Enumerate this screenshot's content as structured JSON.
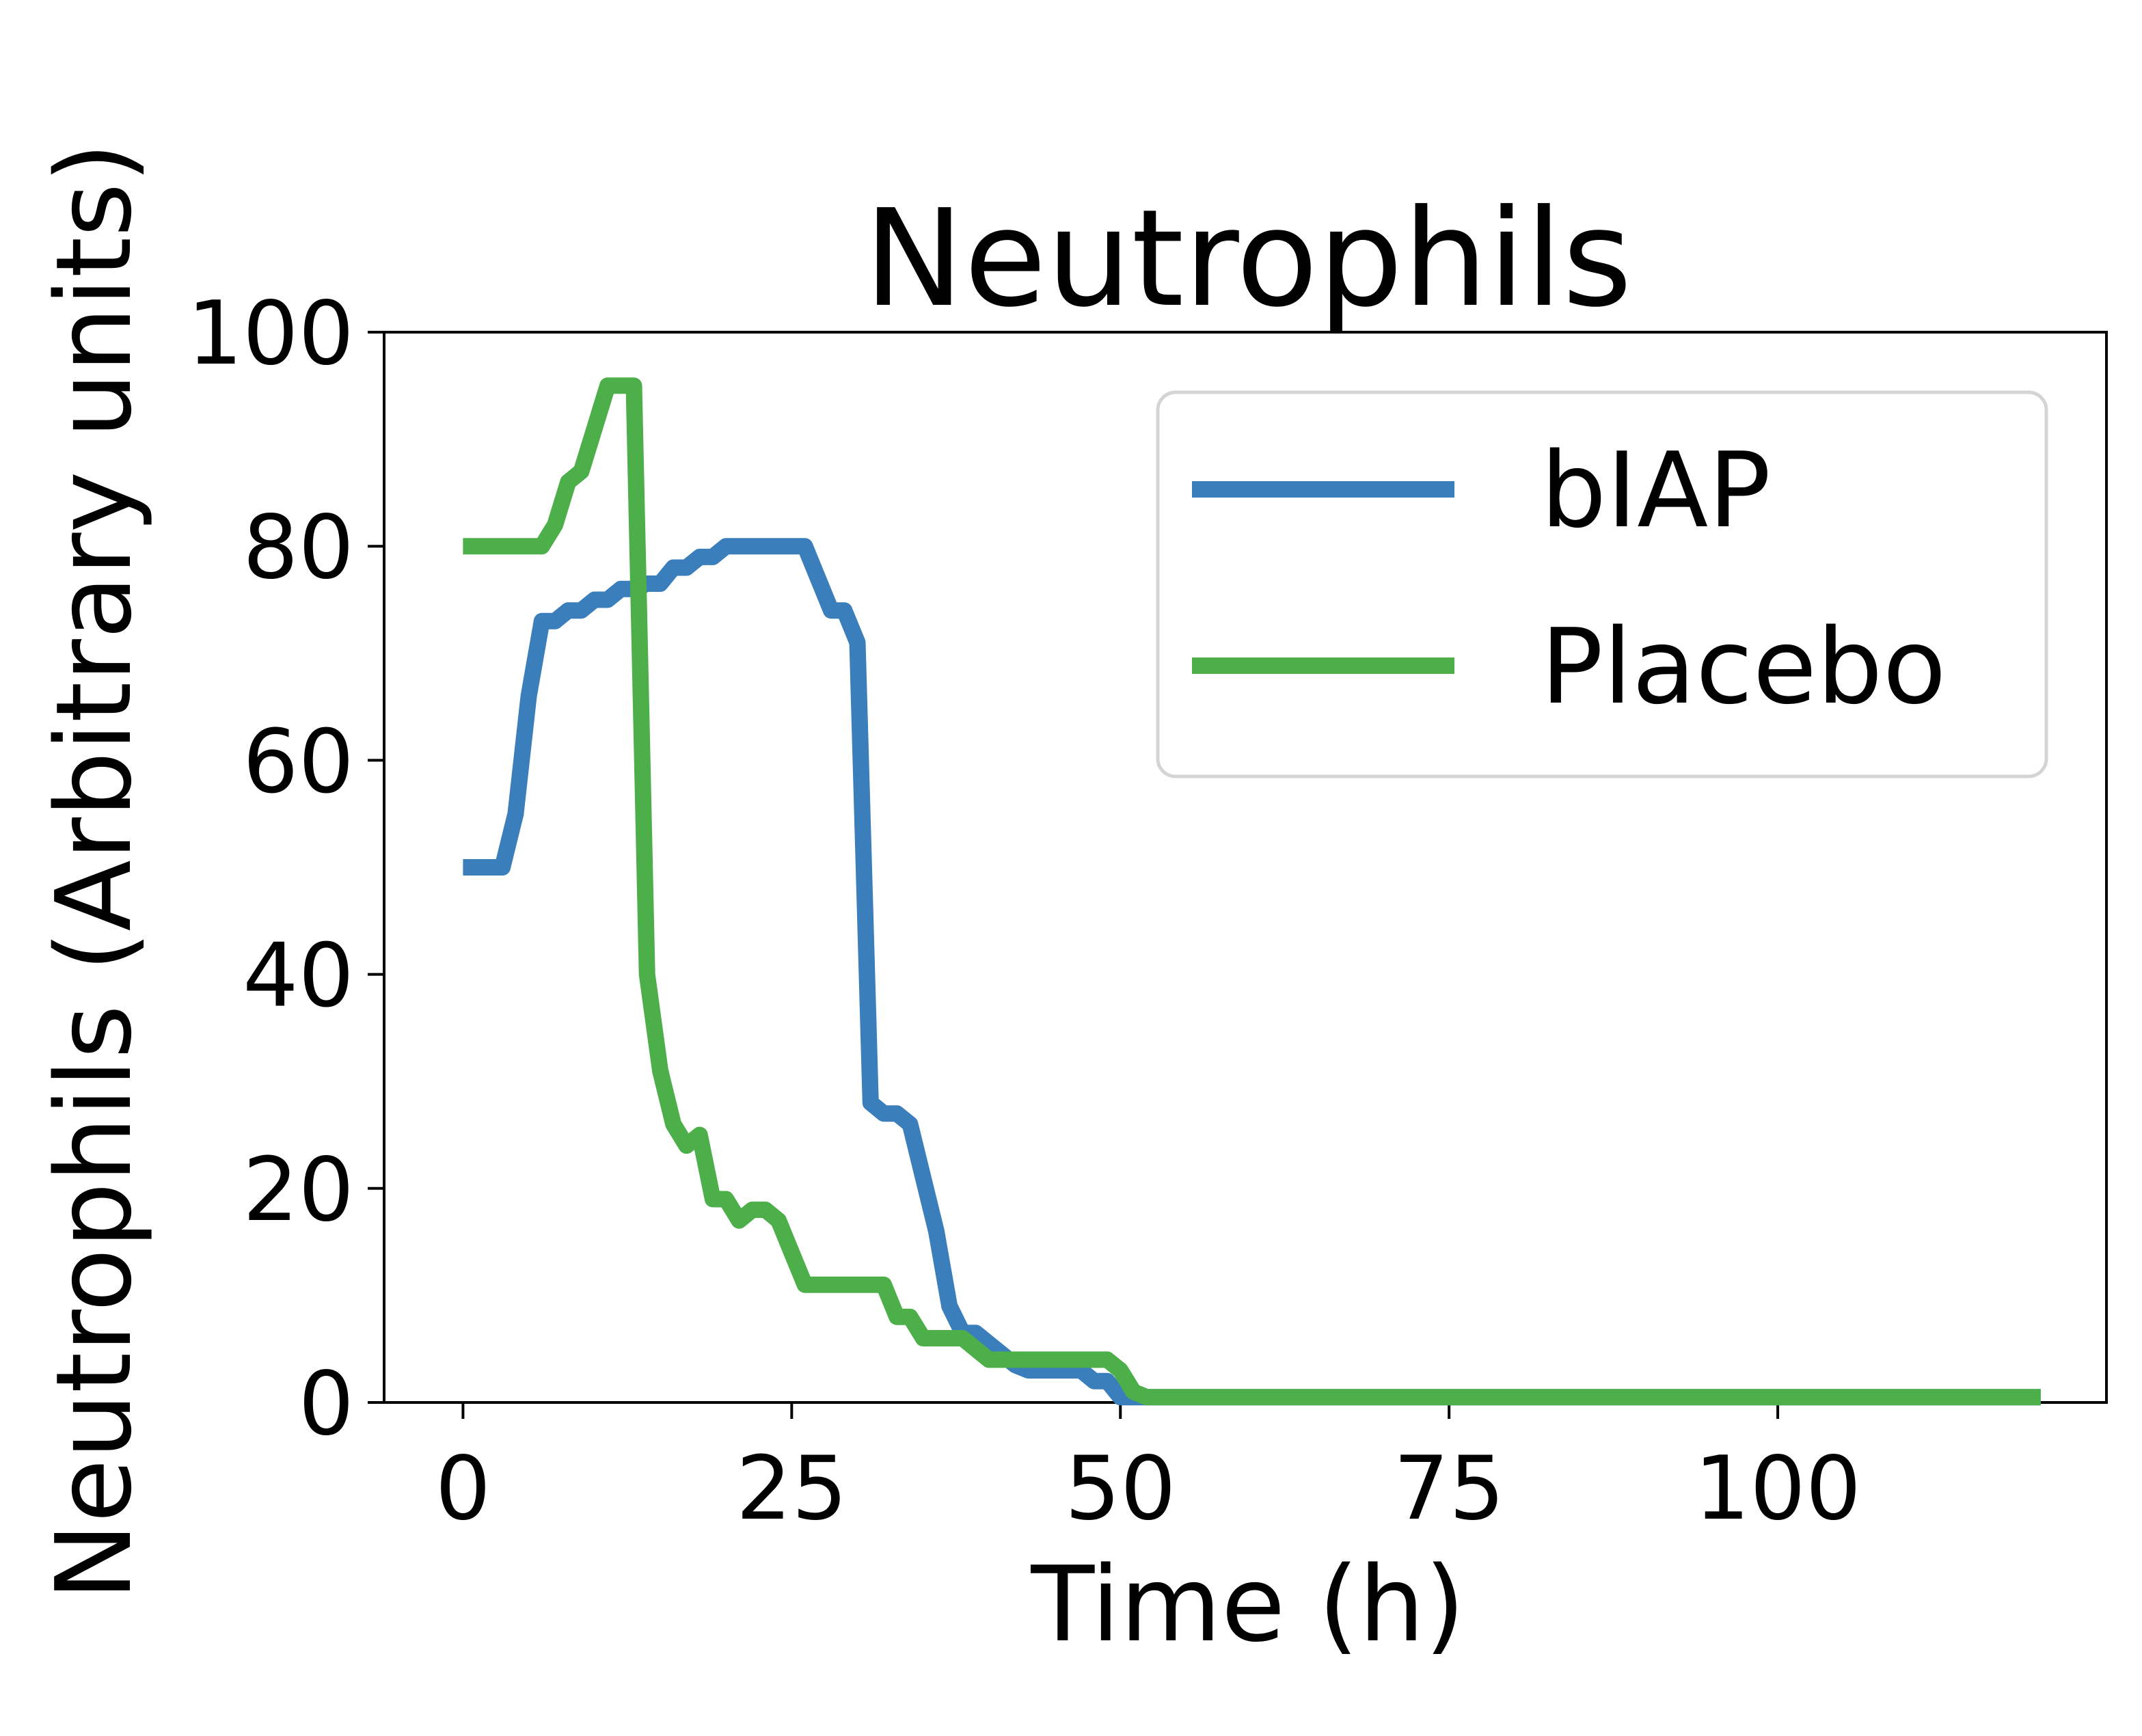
{
  "chart_data": {
    "type": "line",
    "title": "Neutrophils",
    "xlabel": "Time (h)",
    "ylabel": "Neutrophils (Arbitrary units)",
    "xlim": [
      -6,
      125
    ],
    "ylim": [
      0,
      100
    ],
    "x_ticks": [
      0,
      25,
      50,
      75,
      100
    ],
    "y_ticks": [
      0,
      20,
      40,
      60,
      80,
      100
    ],
    "grid": false,
    "legend_position": "top-right",
    "series": [
      {
        "name": "bIAP",
        "color": "#3a7ebc",
        "x": [
          0,
          3,
          4,
          5,
          6,
          7,
          8,
          9,
          10,
          11,
          12,
          13,
          14,
          15,
          16,
          17,
          18,
          19,
          20,
          21,
          22,
          23,
          24,
          25,
          26,
          27,
          28,
          29,
          30,
          31,
          32,
          33,
          34,
          35,
          36,
          37,
          38,
          39,
          40,
          41,
          42,
          43,
          44,
          45,
          46,
          47,
          48,
          49,
          50,
          51,
          120
        ],
        "y": [
          50,
          50,
          55,
          66,
          73,
          73,
          74,
          74,
          75,
          75,
          76,
          76,
          76.5,
          76.5,
          78,
          78,
          79,
          79,
          80,
          80,
          80,
          80,
          80,
          80,
          80,
          77,
          74,
          74,
          71,
          28,
          27,
          27,
          26,
          21,
          16,
          9,
          6.5,
          6.5,
          5.5,
          4.5,
          3.5,
          3,
          3,
          3,
          3,
          3,
          2,
          2,
          0.5,
          0.5,
          0.5
        ]
      },
      {
        "name": "Placebo",
        "color": "#4daf4a",
        "x": [
          0,
          6,
          7,
          8,
          9,
          10,
          11,
          12,
          13,
          14,
          15,
          16,
          17,
          18,
          19,
          20,
          21,
          22,
          23,
          24,
          25,
          26,
          27,
          28,
          29,
          30,
          31,
          32,
          33,
          34,
          35,
          36,
          37,
          38,
          39,
          40,
          41,
          42,
          43,
          44,
          45,
          46,
          47,
          48,
          49,
          50,
          51,
          52,
          120
        ],
        "y": [
          80,
          80,
          82,
          86,
          87,
          91,
          95,
          95,
          95,
          40,
          31,
          26,
          24,
          25,
          19,
          19,
          17,
          18,
          18,
          17,
          14,
          11,
          11,
          11,
          11,
          11,
          11,
          11,
          8,
          8,
          6,
          6,
          6,
          6,
          5,
          4,
          4,
          4,
          4,
          4,
          4,
          4,
          4,
          4,
          4,
          3,
          1,
          0.5,
          0.5
        ]
      }
    ]
  }
}
